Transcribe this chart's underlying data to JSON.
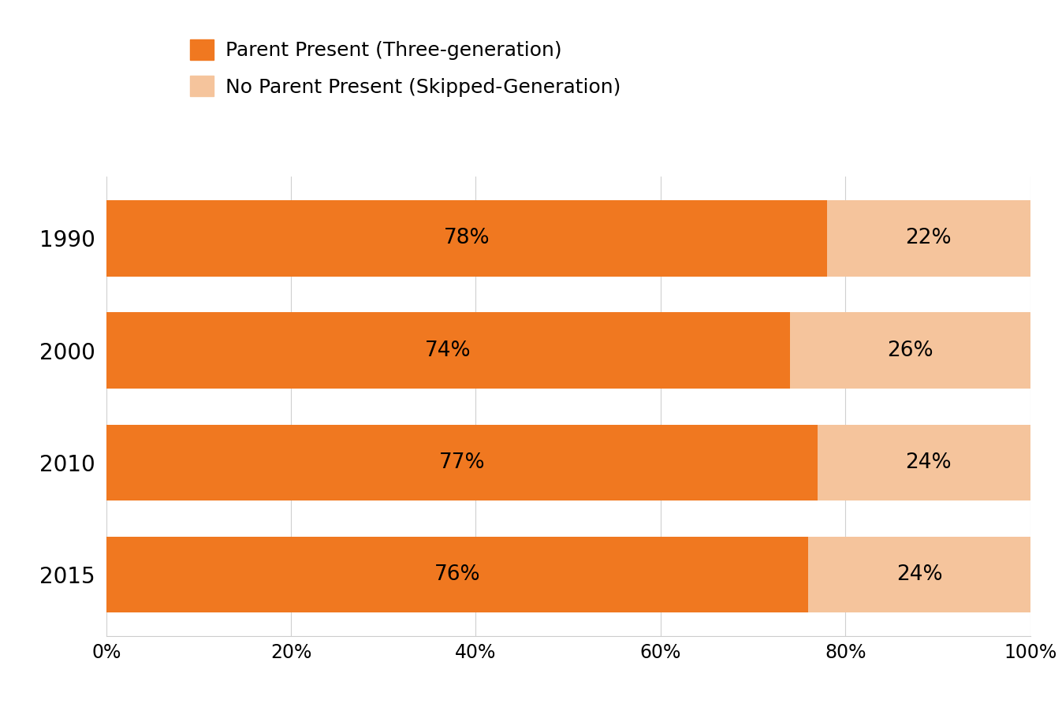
{
  "years": [
    "1990",
    "2000",
    "2010",
    "2015"
  ],
  "parent_present": [
    78,
    74,
    77,
    76
  ],
  "no_parent_present": [
    22,
    26,
    24,
    24
  ],
  "color_parent": "#F07820",
  "color_no_parent": "#F5C49C",
  "legend_label_parent": "Parent Present (Three-generation)",
  "legend_label_no_parent": "No Parent Present (Skipped-Generation)",
  "xlim": [
    0,
    100
  ],
  "xtick_labels": [
    "0%",
    "20%",
    "40%",
    "60%",
    "80%",
    "100%"
  ],
  "xtick_values": [
    0,
    20,
    40,
    60,
    80,
    100
  ],
  "bar_height": 0.68,
  "label_fontsize": 19,
  "tick_fontsize": 17,
  "legend_fontsize": 18,
  "ytick_fontsize": 20,
  "background_color": "#ffffff"
}
